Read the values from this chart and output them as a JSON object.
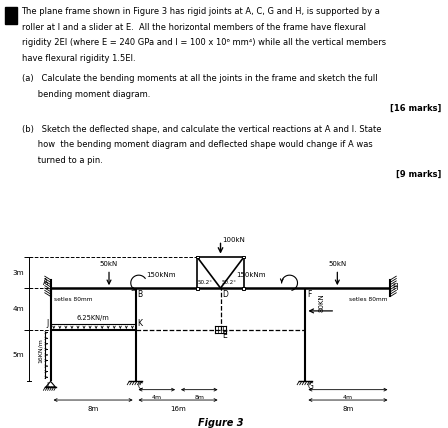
{
  "title": "Figure 3",
  "bg_color": "#ffffff",
  "text_lines": [
    "The plane frame shown in Figure 3 has rigid joints at A, C, G and H, is supported by a",
    "roller at I and a slider at E.  All the horizontal members of the frame have flexural",
    "rigidity 2EI (where E = 240 GPa and I = 100 x 10⁶ mm⁴) while all the vertical members",
    "have flexural rigidity 1.5EI."
  ],
  "part_a_lines": [
    "(a)   Calculate the bending moments at all the joints in the frame and sketch the full",
    "      bending moment diagram."
  ],
  "marks_a": "[16 marks]",
  "part_b_lines": [
    "(b)   Sketch the deflected shape, and calculate the vertical reactions at A and I. State",
    "      how  the bending moment diagram and deflected shape would change if A was",
    "      turned to a pin."
  ],
  "marks_b": "[9 marks]"
}
